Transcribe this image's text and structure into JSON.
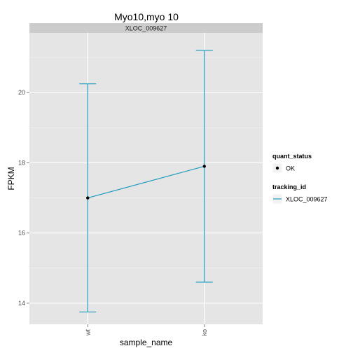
{
  "chart_data": {
    "type": "line",
    "title": "Myo10,myo 10",
    "facet_label": "XLOC_009627",
    "xlabel": "sample_name",
    "ylabel": "FPKM",
    "categories": [
      "wt",
      "ko"
    ],
    "ylim": [
      13.4,
      21.7
    ],
    "yticks": [
      14,
      16,
      18,
      20
    ],
    "grid": true,
    "series": [
      {
        "name": "XLOC_009627",
        "color": "#1f9bc0",
        "values": [
          17.0,
          17.9
        ],
        "ymin": [
          13.75,
          14.6
        ],
        "ymax": [
          20.25,
          21.2
        ]
      }
    ],
    "legend": {
      "placement": "right",
      "groups": [
        {
          "title": "quant_status",
          "entries": [
            "OK"
          ],
          "key": "point"
        },
        {
          "title": "tracking_id",
          "entries": [
            "XLOC_009627"
          ],
          "key": "line"
        }
      ]
    }
  }
}
